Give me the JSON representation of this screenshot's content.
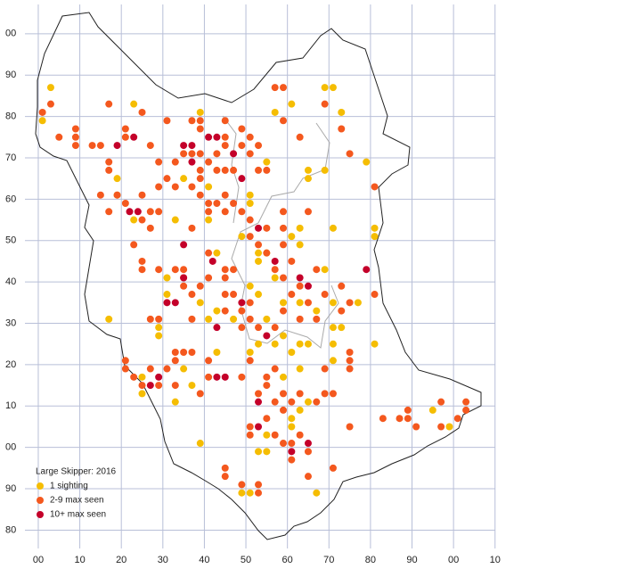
{
  "chart_data": {
    "type": "scatter",
    "title": "Large Skipper:  2016",
    "xlim": [
      -6,
      124
    ],
    "ylim": [
      76,
      206
    ],
    "xticks": [
      {
        "value": 0,
        "label": "00"
      },
      10,
      20,
      30,
      40,
      50,
      60,
      70,
      80,
      90,
      {
        "value": 100,
        "label": "00"
      },
      {
        "value": 110,
        "label": "10"
      }
    ],
    "yticks": [
      80,
      90,
      {
        "value": 100,
        "label": "00"
      },
      {
        "value": 110,
        "label": "10"
      },
      {
        "value": 120,
        "label": "20"
      },
      {
        "value": 130,
        "label": "30"
      },
      {
        "value": 140,
        "label": "40"
      },
      {
        "value": 150,
        "label": "50"
      },
      {
        "value": 160,
        "label": "60"
      },
      {
        "value": 170,
        "label": "70"
      },
      {
        "value": 180,
        "label": "80"
      },
      {
        "value": 190,
        "label": "90"
      },
      {
        "value": 200,
        "label": "00"
      }
    ],
    "grid": true,
    "series": [
      {
        "name": "1 sighting",
        "color": "#f5bd02",
        "x": [
          1,
          3,
          19,
          19,
          23,
          23,
          33,
          35,
          39,
          41,
          41,
          43,
          51,
          51,
          49,
          53,
          53,
          55,
          61,
          63,
          63,
          65,
          65,
          69,
          69,
          71,
          73,
          79,
          81,
          81,
          81,
          71,
          55,
          57,
          61,
          57,
          59,
          63,
          67,
          69,
          71,
          71,
          73,
          77,
          71,
          71,
          63,
          61,
          59,
          57,
          53,
          51,
          53,
          51,
          55,
          47,
          43,
          39,
          31,
          31,
          29,
          29,
          17,
          25,
          25,
          33,
          35,
          37,
          39,
          43,
          41,
          63,
          65,
          61,
          61,
          63,
          65,
          55,
          53,
          55,
          67,
          49,
          51,
          95,
          99,
          59
        ],
        "values": [
          179,
          187,
          165,
          161,
          155,
          183,
          155,
          165,
          181,
          163,
          155,
          147,
          161,
          159,
          151,
          145,
          147,
          147,
          151,
          149,
          153,
          167,
          165,
          167,
          187,
          187,
          181,
          169,
          153,
          151,
          125,
          153,
          169,
          181,
          183,
          141,
          135,
          135,
          133,
          143,
          135,
          129,
          129,
          135,
          121,
          125,
          125,
          123,
          127,
          125,
          125,
          123,
          137,
          139,
          131,
          131,
          133,
          135,
          137,
          141,
          127,
          129,
          131,
          117,
          113,
          111,
          119,
          115,
          101,
          123,
          131,
          119,
          125,
          107,
          105,
          109,
          111,
          103,
          99,
          99,
          89,
          89,
          89,
          109,
          105,
          117
        ]
      },
      {
        "name": "2-9 max seen",
        "color": "#f4581e",
        "x": [
          1,
          3,
          5,
          9,
          9,
          9,
          13,
          15,
          17,
          17,
          21,
          21,
          25,
          27,
          29,
          31,
          33,
          37,
          39,
          39,
          35,
          37,
          39,
          39,
          39,
          41,
          43,
          43,
          45,
          45,
          45,
          45,
          47,
          49,
          49,
          51,
          51,
          53,
          55,
          53,
          57,
          59,
          59,
          63,
          69,
          73,
          75,
          81,
          15,
          17,
          17,
          21,
          19,
          25,
          27,
          27,
          25,
          29,
          29,
          31,
          33,
          37,
          39,
          37,
          41,
          41,
          43,
          45,
          47,
          45,
          49,
          51,
          51,
          53,
          55,
          55,
          57,
          59,
          59,
          59,
          65,
          61,
          63,
          59,
          61,
          69,
          67,
          73,
          73,
          75,
          75,
          75,
          75,
          69,
          67,
          65,
          63,
          59,
          57,
          53,
          51,
          51,
          49,
          49,
          47,
          45,
          45,
          41,
          39,
          37,
          37,
          35,
          35,
          33,
          35,
          41,
          45,
          47,
          45,
          23,
          25,
          25,
          29,
          27,
          29,
          33,
          35,
          37,
          33,
          21,
          21,
          23,
          25,
          27,
          31,
          33,
          29,
          41,
          41,
          39,
          49,
          51,
          53,
          55,
          55,
          57,
          57,
          59,
          59,
          61,
          63,
          67,
          69,
          71,
          51,
          51,
          55,
          57,
          59,
          61,
          61,
          63,
          65,
          65,
          71,
          45,
          45,
          49,
          53,
          53,
          81,
          83,
          87,
          89,
          89,
          91,
          97,
          101,
          103,
          103,
          75,
          97
        ],
        "values": [
          181,
          183,
          175,
          177,
          175,
          173,
          173,
          173,
          183,
          169,
          177,
          175,
          181,
          173,
          169,
          179,
          169,
          179,
          179,
          177,
          171,
          171,
          171,
          167,
          165,
          169,
          171,
          167,
          179,
          175,
          173,
          167,
          167,
          177,
          173,
          175,
          171,
          167,
          167,
          173,
          187,
          187,
          179,
          175,
          183,
          177,
          171,
          163,
          161,
          167,
          157,
          159,
          161,
          161,
          157,
          153,
          155,
          163,
          157,
          165,
          163,
          163,
          161,
          153,
          159,
          157,
          159,
          157,
          159,
          161,
          157,
          155,
          151,
          149,
          153,
          147,
          143,
          157,
          153,
          149,
          157,
          137,
          139,
          141,
          145,
          137,
          143,
          139,
          133,
          135,
          121,
          123,
          119,
          119,
          131,
          135,
          131,
          133,
          129,
          129,
          131,
          135,
          133,
          129,
          137,
          133,
          137,
          141,
          139,
          137,
          131,
          141,
          139,
          143,
          143,
          147,
          143,
          143,
          141,
          149,
          145,
          143,
          143,
          131,
          131,
          123,
          123,
          123,
          121,
          121,
          119,
          117,
          115,
          119,
          119,
          115,
          115,
          121,
          117,
          113,
          117,
          121,
          113,
          115,
          117,
          119,
          111,
          113,
          109,
          111,
          113,
          111,
          113,
          113,
          103,
          105,
          107,
          103,
          101,
          101,
          97,
          103,
          99,
          93,
          95,
          95,
          93,
          91,
          89,
          91,
          137,
          107,
          107,
          109,
          107,
          105,
          105,
          107,
          111,
          109,
          105,
          111
        ]
      },
      {
        "name": "10+ max seen",
        "color": "#c4002a",
        "x": [
          19,
          23,
          22,
          24,
          35,
          37,
          37,
          41,
          43,
          47,
          49,
          35,
          35,
          42,
          31,
          33,
          49,
          43,
          53,
          55,
          57,
          63,
          65,
          79,
          29,
          27,
          43,
          45,
          53,
          53,
          61,
          65
        ],
        "values": [
          173,
          175,
          157,
          157,
          173,
          173,
          169,
          175,
          175,
          171,
          165,
          149,
          141,
          145,
          135,
          135,
          135,
          129,
          153,
          127,
          145,
          141,
          139,
          143,
          117,
          115,
          117,
          117,
          111,
          105,
          99,
          101
        ]
      }
    ]
  }
}
